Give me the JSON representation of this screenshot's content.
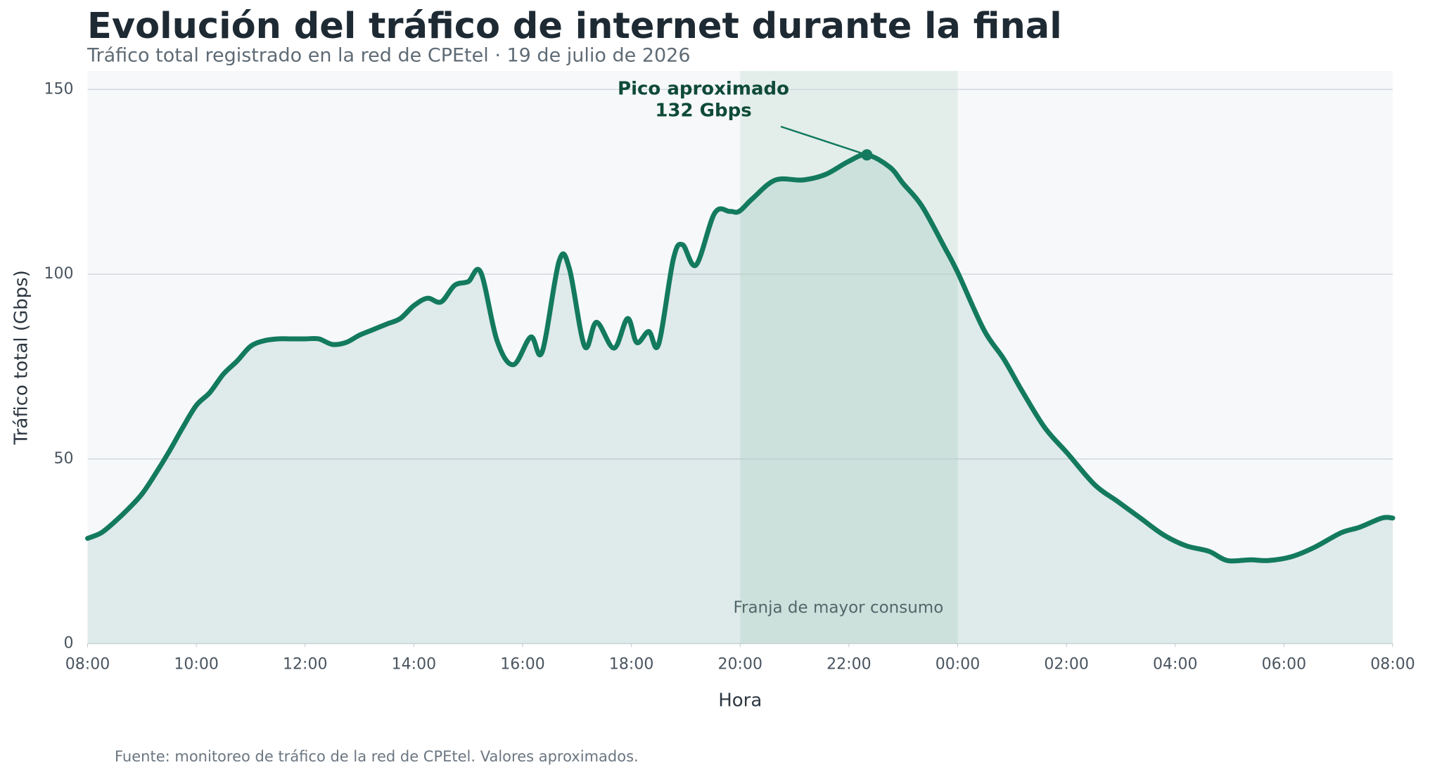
{
  "chart_data": {
    "type": "line",
    "title": "Evolución del tráfico de internet durante la final",
    "subtitle": "Tráfico total registrado en la red de CPEtel · 19 de julio de 2026",
    "x_label": "Hora",
    "y_label": "Tráfico total (Gbps)",
    "source": "Fuente: monitoreo de tráfico de la red de CPEtel. Valores aproximados.",
    "x": [
      8,
      8.25,
      8.5,
      8.75,
      9,
      9.25,
      9.5,
      9.75,
      10,
      10.25,
      10.5,
      10.75,
      11,
      11.25,
      11.5,
      11.75,
      12,
      12.25,
      12.5,
      12.75,
      13,
      13.25,
      13.5,
      13.75,
      14,
      14.25,
      14.5,
      14.75,
      15,
      15.23,
      15.53,
      15.83,
      16.15,
      16.36,
      16.67,
      16.86,
      17.14,
      17.36,
      17.68,
      17.93,
      18.1,
      18.32,
      18.5,
      18.77,
      18.94,
      19.19,
      19.53,
      19.81,
      19.98,
      20.23,
      20.65,
      21.15,
      21.57,
      21.99,
      22.33,
      22.75,
      23,
      23.34,
      23.75,
      24,
      24.48,
      24.85,
      25.18,
      25.6,
      26.02,
      26.52,
      26.94,
      27.36,
      27.78,
      28.2,
      28.62,
      28.96,
      29.38,
      29.71,
      30.13,
      30.55,
      31.05,
      31.39,
      31.8,
      32
    ],
    "series": [
      {
        "name": "Tráfico total",
        "color": "#137a5e",
        "values": [
          28.5,
          30,
          33,
          36.5,
          40.5,
          46,
          52,
          58.5,
          64.5,
          68,
          73,
          76.5,
          80.5,
          82,
          82.5,
          82.5,
          82.5,
          82.5,
          81,
          81.5,
          83.5,
          85,
          86.5,
          88,
          91.5,
          93.5,
          92.5,
          97,
          98,
          100.5,
          82,
          75.5,
          83,
          79,
          103.5,
          101.5,
          80.5,
          87,
          80,
          88,
          81.5,
          84.5,
          81,
          104,
          108,
          102.5,
          116.5,
          117,
          117,
          120.5,
          125.5,
          125.5,
          127,
          130.5,
          132.3,
          129,
          124.5,
          118.5,
          107.5,
          100.5,
          85,
          77,
          68.5,
          58.5,
          51.5,
          43,
          38.5,
          34,
          29.5,
          26.5,
          25,
          22.5,
          22.7,
          22.5,
          23.5,
          26,
          30,
          31.5,
          34,
          34
        ]
      }
    ],
    "xlim": [
      8,
      32
    ],
    "xticks": [
      {
        "value": 8,
        "label": "08:00"
      },
      {
        "value": 10,
        "label": "10:00"
      },
      {
        "value": 12,
        "label": "12:00"
      },
      {
        "value": 14,
        "label": "14:00"
      },
      {
        "value": 16,
        "label": "16:00"
      },
      {
        "value": 18,
        "label": "18:00"
      },
      {
        "value": 20,
        "label": "20:00"
      },
      {
        "value": 22,
        "label": "22:00"
      },
      {
        "value": 24,
        "label": "00:00"
      },
      {
        "value": 26,
        "label": "02:00"
      },
      {
        "value": 28,
        "label": "04:00"
      },
      {
        "value": 30,
        "label": "06:00"
      },
      {
        "value": 32,
        "label": "08:00"
      }
    ],
    "ylim": [
      0,
      155
    ],
    "yticks": [
      0,
      50,
      100,
      150
    ],
    "grid": true,
    "highlight": {
      "x": [
        20,
        24
      ],
      "label": "Franja de mayor consumo"
    },
    "annotation": {
      "text": [
        "Pico aproximado",
        "132 Gbps"
      ],
      "x": 22.33,
      "y": 132.3
    }
  }
}
